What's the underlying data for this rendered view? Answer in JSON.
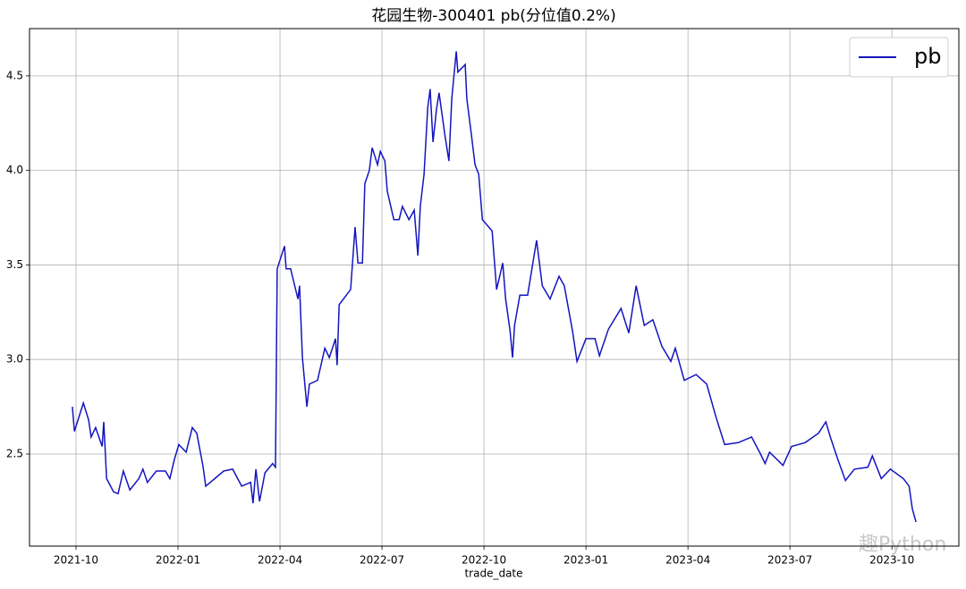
{
  "chart_data": {
    "type": "line",
    "title": "花园生物-300401 pb(分位值0.2%)",
    "xlabel": "trade_date",
    "watermark": "趣Python",
    "grid": true,
    "legend": "upper right",
    "xlim": [
      2021.636,
      2023.914
    ],
    "ylim": [
      2.013,
      4.75
    ],
    "xticks": [
      {
        "value": 2021.75,
        "label": "2021-10"
      },
      {
        "value": 2022.0,
        "label": "2022-01"
      },
      {
        "value": 2022.25,
        "label": "2022-04"
      },
      {
        "value": 2022.5,
        "label": "2022-07"
      },
      {
        "value": 2022.75,
        "label": "2022-10"
      },
      {
        "value": 2023.0,
        "label": "2023-01"
      },
      {
        "value": 2023.25,
        "label": "2023-04"
      },
      {
        "value": 2023.5,
        "label": "2023-07"
      },
      {
        "value": 2023.75,
        "label": "2023-10"
      }
    ],
    "yticks": [
      {
        "value": 2.5,
        "label": "2.5"
      },
      {
        "value": 3.0,
        "label": "3.0"
      },
      {
        "value": 3.5,
        "label": "3.5"
      },
      {
        "value": 4.0,
        "label": "4.0"
      },
      {
        "value": 4.5,
        "label": "4.5"
      }
    ],
    "x": [
      2021.741,
      2021.746,
      2021.768,
      2021.781,
      2021.787,
      2021.798,
      2021.814,
      2021.818,
      2021.825,
      2021.842,
      2021.853,
      2021.866,
      2021.882,
      2021.904,
      2021.914,
      2021.925,
      2021.947,
      2021.969,
      2021.98,
      2021.991,
      2022.002,
      2022.02,
      2022.035,
      2022.046,
      2022.061,
      2022.068,
      2022.09,
      2022.112,
      2022.134,
      2022.156,
      2022.178,
      2022.184,
      2022.191,
      2022.2,
      2022.213,
      2022.232,
      2022.239,
      2022.243,
      2022.261,
      2022.265,
      2022.276,
      2022.294,
      2022.298,
      2022.305,
      2022.316,
      2022.322,
      2022.342,
      2022.36,
      2022.371,
      2022.386,
      2022.39,
      2022.395,
      2022.423,
      2022.434,
      2022.441,
      2022.452,
      2022.458,
      2022.469,
      2022.476,
      2022.489,
      2022.496,
      2022.507,
      2022.513,
      2022.529,
      2022.542,
      2022.55,
      2022.566,
      2022.579,
      2022.588,
      2022.594,
      2022.603,
      2022.612,
      2022.618,
      2022.625,
      2022.634,
      2022.64,
      2022.654,
      2022.664,
      2022.671,
      2022.682,
      2022.686,
      2022.704,
      2022.708,
      2022.719,
      2022.728,
      2022.737,
      2022.746,
      2022.77,
      2022.781,
      2022.796,
      2022.803,
      2022.814,
      2022.82,
      2022.825,
      2022.838,
      2022.857,
      2022.879,
      2022.893,
      2022.912,
      2022.934,
      2022.947,
      2022.967,
      2022.978,
      2023.0,
      2023.022,
      2023.033,
      2023.055,
      2023.086,
      2023.105,
      2023.123,
      2023.143,
      2023.164,
      2023.186,
      2023.208,
      2023.219,
      2023.241,
      2023.27,
      2023.296,
      2023.318,
      2023.34,
      2023.373,
      2023.406,
      2023.428,
      2023.439,
      2023.45,
      2023.483,
      2023.504,
      2023.537,
      2023.57,
      2023.588,
      2023.599,
      2023.616,
      2023.636,
      2023.658,
      2023.691,
      2023.702,
      2023.724,
      2023.746,
      2023.778,
      2023.792,
      2023.8,
      2023.809
    ],
    "series": [
      {
        "name": "pb",
        "color": "#1414c0",
        "values": [
          2.75,
          2.62,
          2.77,
          2.68,
          2.59,
          2.64,
          2.54,
          2.67,
          2.37,
          2.3,
          2.29,
          2.41,
          2.31,
          2.37,
          2.42,
          2.35,
          2.41,
          2.41,
          2.37,
          2.47,
          2.55,
          2.51,
          2.64,
          2.61,
          2.44,
          2.33,
          2.37,
          2.41,
          2.42,
          2.33,
          2.35,
          2.24,
          2.42,
          2.25,
          2.4,
          2.45,
          2.43,
          3.48,
          3.6,
          3.48,
          3.48,
          3.32,
          3.39,
          3.01,
          2.75,
          2.87,
          2.89,
          3.06,
          3.01,
          3.11,
          2.97,
          3.29,
          3.37,
          3.7,
          3.51,
          3.51,
          3.93,
          4.0,
          4.12,
          4.03,
          4.1,
          4.05,
          3.89,
          3.74,
          3.74,
          3.81,
          3.74,
          3.79,
          3.55,
          3.81,
          3.98,
          4.33,
          4.43,
          4.15,
          4.33,
          4.41,
          4.19,
          4.05,
          4.38,
          4.63,
          4.52,
          4.56,
          4.38,
          4.19,
          4.03,
          3.98,
          3.74,
          3.68,
          3.37,
          3.51,
          3.32,
          3.15,
          3.01,
          3.18,
          3.34,
          3.34,
          3.63,
          3.39,
          3.32,
          3.44,
          3.39,
          3.15,
          2.99,
          3.11,
          3.11,
          3.02,
          3.16,
          3.27,
          3.14,
          3.39,
          3.18,
          3.21,
          3.07,
          2.99,
          3.06,
          2.89,
          2.92,
          2.87,
          2.7,
          2.55,
          2.56,
          2.59,
          2.5,
          2.45,
          2.51,
          2.44,
          2.54,
          2.56,
          2.61,
          2.67,
          2.59,
          2.48,
          2.36,
          2.42,
          2.43,
          2.49,
          2.37,
          2.42,
          2.37,
          2.33,
          2.21,
          2.14
        ]
      }
    ]
  }
}
